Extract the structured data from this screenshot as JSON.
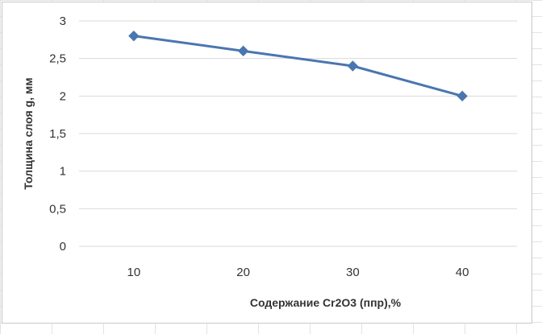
{
  "chart_data": {
    "type": "line",
    "title": "",
    "xlabel": "Содержание Cr2O3 (ппр),%",
    "ylabel": "Толщина слоя g, мм",
    "x": [
      10,
      20,
      30,
      40
    ],
    "categories": [
      "10",
      "20",
      "30",
      "40"
    ],
    "series": [
      {
        "values": [
          2.8,
          2.6,
          2.4,
          2.0
        ]
      }
    ],
    "ylim": [
      0,
      3
    ],
    "yticks": [
      0,
      0.5,
      1,
      1.5,
      2,
      2.5,
      3
    ],
    "ytick_labels": [
      "0",
      "0,5",
      "1",
      "1,5",
      "2",
      "2,5",
      "3"
    ],
    "grid": true,
    "legend": "none",
    "marker": "diamond",
    "colors": {
      "series": "#4a76b0",
      "grid": "#d9d9d9"
    }
  }
}
